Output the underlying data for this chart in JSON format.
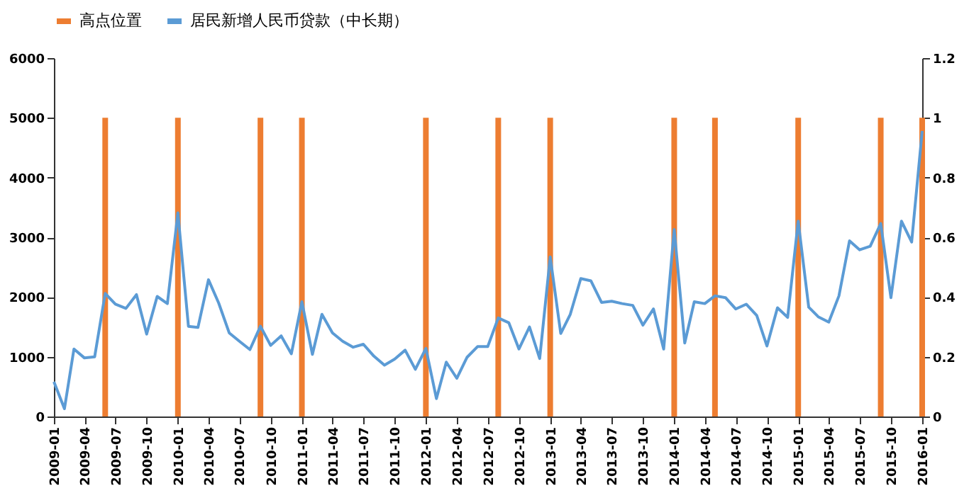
{
  "chart_data": {
    "type": "line",
    "x": [
      "2009-01",
      "2009-02",
      "2009-03",
      "2009-04",
      "2009-05",
      "2009-06",
      "2009-07",
      "2009-08",
      "2009-09",
      "2009-10",
      "2009-11",
      "2009-12",
      "2010-01",
      "2010-02",
      "2010-03",
      "2010-04",
      "2010-05",
      "2010-06",
      "2010-07",
      "2010-08",
      "2010-09",
      "2010-10",
      "2010-11",
      "2010-12",
      "2011-01",
      "2011-02",
      "2011-03",
      "2011-04",
      "2011-05",
      "2011-06",
      "2011-07",
      "2011-08",
      "2011-09",
      "2011-10",
      "2011-11",
      "2011-12",
      "2012-01",
      "2012-02",
      "2012-03",
      "2012-04",
      "2012-05",
      "2012-06",
      "2012-07",
      "2012-08",
      "2012-09",
      "2012-10",
      "2012-11",
      "2012-12",
      "2013-01",
      "2013-02",
      "2013-03",
      "2013-04",
      "2013-05",
      "2013-06",
      "2013-07",
      "2013-08",
      "2013-09",
      "2013-10",
      "2013-11",
      "2013-12",
      "2014-01",
      "2014-02",
      "2014-03",
      "2014-04",
      "2014-05",
      "2014-06",
      "2014-07",
      "2014-08",
      "2014-09",
      "2014-10",
      "2014-11",
      "2014-12",
      "2015-01",
      "2015-02",
      "2015-03",
      "2015-04",
      "2015-05",
      "2015-06",
      "2015-07",
      "2015-08",
      "2015-09",
      "2015-10",
      "2015-11",
      "2015-12",
      "2016-01"
    ],
    "series": [
      {
        "name": "高点位置",
        "type": "bar",
        "axis": "y2",
        "color": "#ed7d31",
        "x": [
          "2009-06",
          "2010-01",
          "2010-09",
          "2011-01",
          "2012-01",
          "2012-08",
          "2013-01",
          "2014-01",
          "2014-05",
          "2015-01",
          "2015-09",
          "2016-01"
        ],
        "values": [
          1,
          1,
          1,
          1,
          1,
          1,
          1,
          1,
          1,
          1,
          1,
          1
        ]
      },
      {
        "name": "居民新增人民币贷款（中长期）",
        "color": "#5b9bd5",
        "values": [
          580,
          130,
          1130,
          980,
          1000,
          2060,
          1880,
          1810,
          2040,
          1380,
          2010,
          1890,
          3410,
          1510,
          1490,
          2290,
          1900,
          1400,
          1260,
          1120,
          1510,
          1190,
          1350,
          1050,
          1920,
          1040,
          1710,
          1400,
          1260,
          1160,
          1210,
          1010,
          860,
          960,
          1110,
          790,
          1140,
          300,
          910,
          640,
          990,
          1170,
          1170,
          1650,
          1570,
          1130,
          1500,
          970,
          2670,
          1390,
          1710,
          2310,
          2270,
          1910,
          1930,
          1890,
          1860,
          1530,
          1800,
          1130,
          3130,
          1230,
          1920,
          1890,
          2020,
          1990,
          1800,
          1880,
          1690,
          1180,
          1820,
          1660,
          3270,
          1830,
          1670,
          1580,
          2020,
          2940,
          2790,
          2850,
          3230,
          1990,
          3270,
          2920,
          4780
        ]
      }
    ],
    "xlim": [
      "2009-01",
      "2016-01"
    ],
    "xticks": [
      "2009-01",
      "2009-04",
      "2009-07",
      "2009-10",
      "2010-01",
      "2010-04",
      "2010-07",
      "2010-10",
      "2011-01",
      "2011-04",
      "2011-07",
      "2011-10",
      "2012-01",
      "2012-04",
      "2012-07",
      "2012-10",
      "2013-01",
      "2013-04",
      "2013-07",
      "2013-10",
      "2014-01",
      "2014-04",
      "2014-07",
      "2014-10",
      "2015-01",
      "2015-04",
      "2015-07",
      "2015-10",
      "2016-01"
    ],
    "ylim": [
      0,
      6000
    ],
    "yticks": [
      0,
      1000,
      2000,
      3000,
      4000,
      5000,
      6000
    ],
    "y2lim": [
      0,
      1.2
    ],
    "y2ticks": [
      0,
      0.2,
      0.4,
      0.6,
      0.8,
      1,
      1.2
    ],
    "grid": false,
    "legend": "top",
    "marker": "none",
    "line_style": "solid"
  }
}
